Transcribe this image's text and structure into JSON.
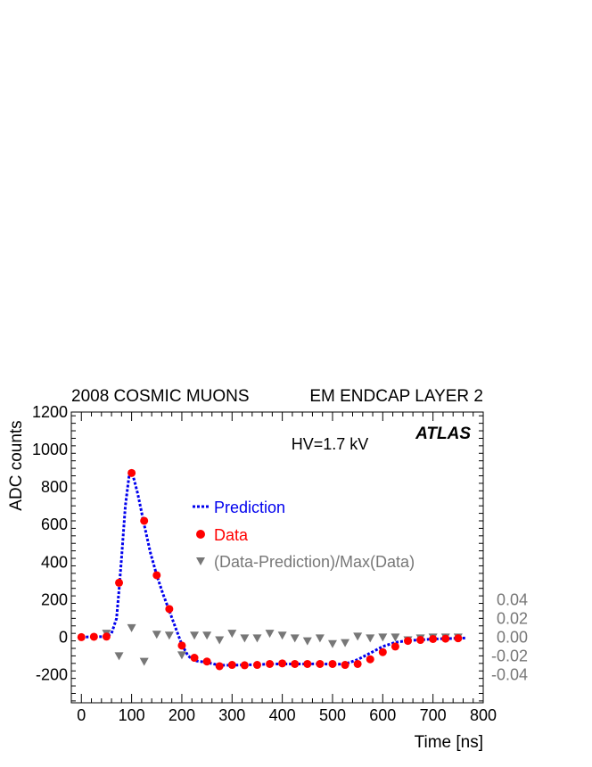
{
  "chart_data": {
    "type": "scatter",
    "title_left": "2008 COSMIC MUONS",
    "title_right": "EM ENDCAP LAYER 2",
    "annotation": "HV=1.7 kV",
    "experiment": "ATLAS",
    "xlabel": "Time [ns]",
    "ylabel": "ADC counts",
    "xlim": [
      -20,
      800
    ],
    "ylim": [
      -350,
      1200
    ],
    "x_ticks": [
      "0",
      "100",
      "200",
      "300",
      "400",
      "500",
      "600",
      "700",
      "800"
    ],
    "y_ticks": [
      "-200",
      "0",
      "200",
      "400",
      "600",
      "800",
      "1000",
      "1200"
    ],
    "y2_ticks": [
      "0.04",
      "0.02",
      "0.00",
      "-0.02",
      "-0.04"
    ],
    "y2_range_at_zero_scale": 0.05,
    "legend_position": "center",
    "colors": {
      "prediction": "#0000ee",
      "data": "#ff0000",
      "residual": "#777777",
      "axis": "#000000"
    },
    "series": [
      {
        "name": "Prediction",
        "style": "dashed-line",
        "x": [
          0,
          25,
          50,
          60,
          70,
          75,
          80,
          87.5,
          95,
          100,
          105,
          112.5,
          125,
          137.5,
          150,
          162.5,
          175,
          187.5,
          200,
          212.5,
          225,
          250,
          275,
          300,
          325,
          350,
          375,
          400,
          425,
          450,
          475,
          500,
          525,
          550,
          575,
          600,
          625,
          650,
          675,
          700,
          725,
          750,
          765
        ],
        "y": [
          0,
          2,
          3,
          20,
          100,
          250,
          420,
          700,
          860,
          880,
          840,
          760,
          600,
          450,
          330,
          230,
          140,
          50,
          -40,
          -100,
          -125,
          -135,
          -150,
          -150,
          -148,
          -147,
          -143,
          -143,
          -143,
          -143,
          -142,
          -145,
          -143,
          -120,
          -85,
          -50,
          -28,
          -18,
          -15,
          -10,
          -8,
          -6,
          -5
        ]
      },
      {
        "name": "Data",
        "style": "marker-circle",
        "x": [
          0,
          25,
          50,
          75,
          100,
          125,
          150,
          175,
          200,
          225,
          250,
          275,
          300,
          325,
          350,
          375,
          400,
          425,
          450,
          475,
          500,
          525,
          550,
          575,
          600,
          625,
          650,
          675,
          700,
          725,
          750
        ],
        "y": [
          0,
          2,
          3,
          290,
          875,
          620,
          330,
          150,
          -45,
          -110,
          -130,
          -155,
          -148,
          -150,
          -148,
          -143,
          -140,
          -143,
          -143,
          -143,
          -143,
          -148,
          -143,
          -118,
          -80,
          -50,
          -20,
          -15,
          -10,
          -8,
          -6
        ]
      },
      {
        "name": "(Data-Prediction)/Max(Data)",
        "style": "marker-triangle-down",
        "axis": "right",
        "x": [
          50,
          75,
          100,
          125,
          150,
          175,
          200,
          225,
          250,
          275,
          300,
          325,
          350,
          375,
          400,
          425,
          450,
          475,
          500,
          525,
          550,
          575,
          600,
          625,
          650,
          675,
          700,
          725,
          750
        ],
        "y": [
          0.004,
          -0.02,
          0.01,
          -0.026,
          0.003,
          0.002,
          -0.019,
          0.002,
          0.002,
          -0.003,
          0.004,
          -0.001,
          -0.001,
          0.004,
          0.002,
          -0.001,
          -0.004,
          -0.001,
          -0.007,
          -0.006,
          0.001,
          -0.001,
          0.0,
          0.0,
          -0.003,
          -0.001,
          0.0,
          0.0,
          0.0
        ]
      }
    ]
  }
}
